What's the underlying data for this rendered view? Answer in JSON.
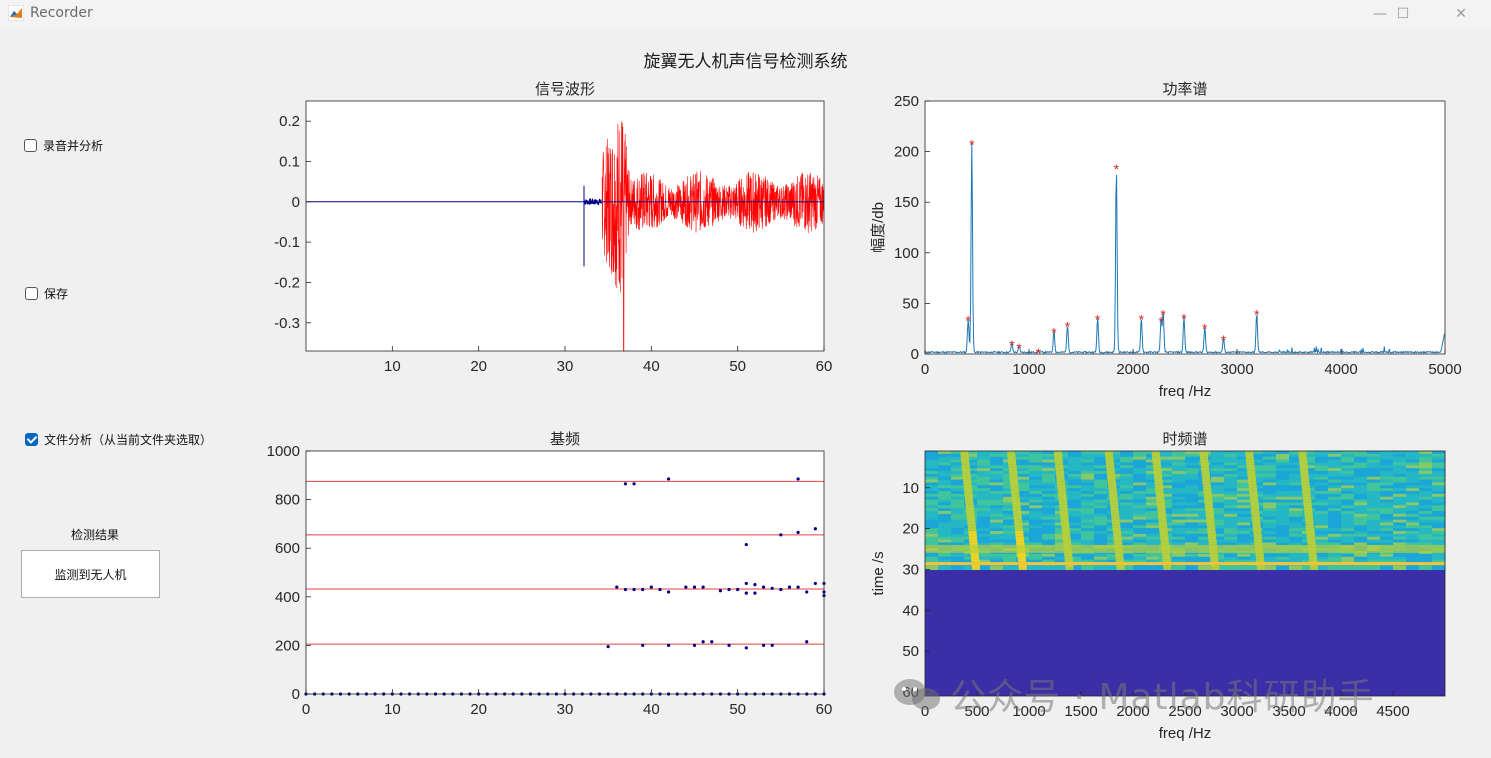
{
  "window": {
    "title": "Recorder",
    "minimize_glyph": "—",
    "maximize_glyph": "☐",
    "close_glyph": "✕"
  },
  "main_title": "旋翼无人机声信号检测系统",
  "controls": {
    "record_checkbox": {
      "label": "录音并分析",
      "checked": false
    },
    "save_checkbox": {
      "label": "保存",
      "checked": false
    },
    "file_checkbox": {
      "label": "文件分析（从当前文件夹选取）",
      "checked": true
    }
  },
  "result": {
    "label": "检测结果",
    "value": "监测到无人机"
  },
  "watermark": "公众号 · Matlab科研助手",
  "colors": {
    "signal": "#ff0000",
    "pre_signal": "#00008b",
    "spectrum": "#1f77b4",
    "peak_marker": "#d62728",
    "f0_points": "#00008b",
    "f0_lines": "#e04040",
    "accent": "#0067c0"
  },
  "chart_data": [
    {
      "type": "line",
      "title": "信号波形",
      "xlim": [
        0,
        60
      ],
      "ylim": [
        -0.37,
        0.25
      ],
      "xticks": [
        10,
        20,
        30,
        40,
        50,
        60
      ],
      "yticks": [
        0.2,
        0.1,
        0,
        -0.1,
        -0.2,
        -0.3
      ],
      "xtick_labels": [
        "10",
        "20",
        "30",
        "40",
        "50",
        "60"
      ],
      "ytick_labels": [
        "0.2",
        "0.1",
        "0",
        "-0.1",
        "-0.2",
        "-0.3"
      ],
      "series": [
        {
          "segment": "baseline",
          "x": [
            0,
            32.2
          ],
          "color": "pre_signal"
        },
        {
          "segment": "spike",
          "x": 32.2,
          "y": [
            -0.16,
            0.04
          ],
          "color": "pre_signal"
        },
        {
          "segment": "pre_noise",
          "x": [
            32.2,
            34.3
          ],
          "amplitude": 0.008,
          "color": "pre_signal"
        },
        {
          "segment": "burst",
          "x": [
            34.3,
            37.5
          ],
          "amplitude": 0.25,
          "color": "signal"
        },
        {
          "segment": "tail",
          "x": [
            37.5,
            60
          ],
          "amplitude": 0.06,
          "color": "signal"
        }
      ]
    },
    {
      "type": "line",
      "title": "功率谱",
      "xlabel": "freq /Hz",
      "ylabel": "幅度/db",
      "xlim": [
        0,
        5000
      ],
      "ylim": [
        0,
        250
      ],
      "xticks": [
        0,
        1000,
        2000,
        3000,
        4000,
        5000
      ],
      "yticks": [
        0,
        50,
        100,
        150,
        200,
        250
      ],
      "xtick_labels": [
        "0",
        "1000",
        "2000",
        "3000",
        "4000",
        "5000"
      ],
      "ytick_labels": [
        "0",
        "50",
        "100",
        "150",
        "200",
        "250"
      ],
      "peaks": [
        {
          "f": 415,
          "y": 33
        },
        {
          "f": 450,
          "y": 207
        },
        {
          "f": 835,
          "y": 9
        },
        {
          "f": 905,
          "y": 6
        },
        {
          "f": 1090,
          "y": 1
        },
        {
          "f": 1240,
          "y": 21
        },
        {
          "f": 1370,
          "y": 27
        },
        {
          "f": 1660,
          "y": 34
        },
        {
          "f": 1840,
          "y": 183
        },
        {
          "f": 2080,
          "y": 34
        },
        {
          "f": 2270,
          "y": 32
        },
        {
          "f": 2290,
          "y": 39
        },
        {
          "f": 2490,
          "y": 35
        },
        {
          "f": 2690,
          "y": 25
        },
        {
          "f": 2870,
          "y": 14
        },
        {
          "f": 3190,
          "y": 39
        }
      ]
    },
    {
      "type": "scatter",
      "title": "基频",
      "xlim": [
        0,
        60
      ],
      "ylim": [
        0,
        1000
      ],
      "xticks": [
        0,
        10,
        20,
        30,
        40,
        50,
        60
      ],
      "yticks": [
        0,
        200,
        400,
        600,
        800,
        1000
      ],
      "xtick_labels": [
        "0",
        "10",
        "20",
        "30",
        "40",
        "50",
        "60"
      ],
      "ytick_labels": [
        "0",
        "200",
        "400",
        "600",
        "800",
        "1000"
      ],
      "hlines": [
        205,
        432,
        655,
        875
      ],
      "points": [
        [
          35,
          195
        ],
        [
          36,
          440
        ],
        [
          37,
          430
        ],
        [
          38,
          430
        ],
        [
          39,
          430
        ],
        [
          40,
          440
        ],
        [
          41,
          430
        ],
        [
          42,
          420
        ],
        [
          44,
          440
        ],
        [
          45,
          440
        ],
        [
          46,
          440
        ],
        [
          48,
          425
        ],
        [
          49,
          430
        ],
        [
          50,
          430
        ],
        [
          51,
          415
        ],
        [
          51,
          455
        ],
        [
          52,
          450
        ],
        [
          52,
          415
        ],
        [
          53,
          440
        ],
        [
          54,
          435
        ],
        [
          55,
          430
        ],
        [
          56,
          440
        ],
        [
          57,
          440
        ],
        [
          58,
          420
        ],
        [
          59,
          455
        ],
        [
          60,
          420
        ],
        [
          60,
          455
        ],
        [
          39,
          200
        ],
        [
          42,
          200
        ],
        [
          45,
          200
        ],
        [
          46,
          215
        ],
        [
          47,
          215
        ],
        [
          49,
          200
        ],
        [
          51,
          190
        ],
        [
          53,
          200
        ],
        [
          54,
          200
        ],
        [
          58,
          215
        ],
        [
          60,
          405
        ],
        [
          37,
          865
        ],
        [
          38,
          865
        ],
        [
          42,
          885
        ],
        [
          57,
          885
        ],
        [
          51,
          615
        ],
        [
          55,
          655
        ],
        [
          57,
          665
        ],
        [
          59,
          680
        ]
      ],
      "baseline_points_y": 0
    },
    {
      "type": "heatmap",
      "title": "时频谱",
      "xlabel": "freq /Hz",
      "ylabel": "time /s",
      "xticks": [
        0,
        500,
        1000,
        1500,
        2000,
        2500,
        3000,
        3500,
        4000,
        4500
      ],
      "xtick_labels": [
        "0",
        "500",
        "1000",
        "1500",
        "2000",
        "2500",
        "3000",
        "3500",
        "4000",
        "4500"
      ],
      "yticks": [
        10,
        20,
        30,
        40,
        50,
        60
      ],
      "ytick_labels": [
        "10",
        "20",
        "30",
        "40",
        "50",
        "60"
      ],
      "xlim": [
        0,
        5000
      ],
      "ylim": [
        1,
        61
      ],
      "active_time_range": [
        1,
        29
      ],
      "harmonic_freqs": [
        450,
        900,
        1350,
        1840,
        2290,
        2750,
        3190,
        3700
      ]
    }
  ]
}
